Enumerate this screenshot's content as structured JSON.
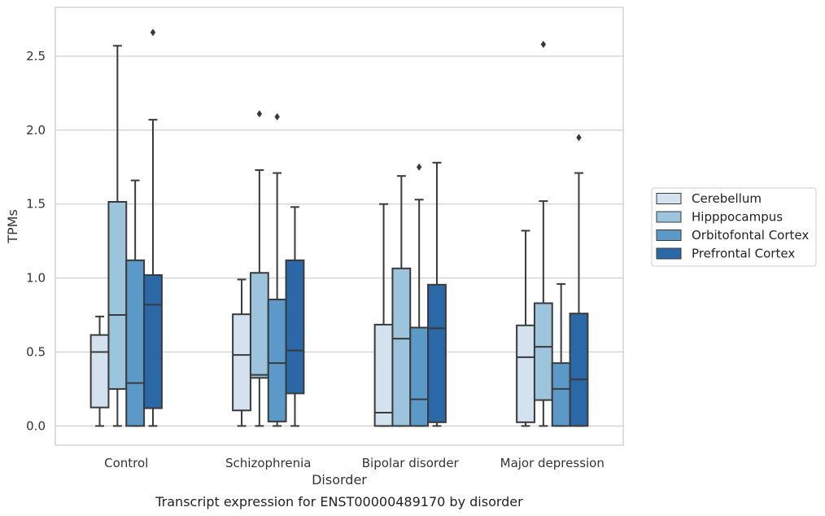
{
  "chart_data": {
    "type": "boxplot",
    "title": "",
    "caption": "Transcript expression for ENST00000489170 by disorder",
    "xlabel": "Disorder",
    "ylabel": "TPMs",
    "ylim": [
      -0.13,
      2.83
    ],
    "yticks": [
      0.0,
      0.5,
      1.0,
      1.5,
      2.0,
      2.5
    ],
    "ytick_labels": [
      "0.0",
      "0.5",
      "1.0",
      "1.5",
      "2.0",
      "2.5"
    ],
    "grid": "horizontal",
    "legend_position": "right",
    "categories": [
      "Control",
      "Schizophrenia",
      "Bipolar disorder",
      "Major depression"
    ],
    "series": [
      {
        "name": "Cerebellum",
        "color": "#d4e2f0",
        "boxes": [
          {
            "whislo": 0.0,
            "q1": 0.125,
            "med": 0.5,
            "q3": 0.615,
            "whishi": 0.74,
            "fliers": []
          },
          {
            "whislo": 0.0,
            "q1": 0.105,
            "med": 0.48,
            "q3": 0.755,
            "whishi": 0.99,
            "fliers": []
          },
          {
            "whislo": 0.0,
            "q1": 0.0,
            "med": 0.09,
            "q3": 0.685,
            "whishi": 1.5,
            "fliers": []
          },
          {
            "whislo": 0.0,
            "q1": 0.025,
            "med": 0.465,
            "q3": 0.68,
            "whishi": 1.32,
            "fliers": []
          }
        ]
      },
      {
        "name": "Hipppocampus",
        "color": "#9cc4dc",
        "boxes": [
          {
            "whislo": 0.0,
            "q1": 0.25,
            "med": 0.75,
            "q3": 1.515,
            "whishi": 2.57,
            "fliers": []
          },
          {
            "whislo": 0.0,
            "q1": 0.325,
            "med": 0.345,
            "q3": 1.035,
            "whishi": 1.73,
            "fliers": [
              2.11
            ]
          },
          {
            "whislo": 0.0,
            "q1": 0.0,
            "med": 0.59,
            "q3": 1.065,
            "whishi": 1.69,
            "fliers": []
          },
          {
            "whislo": 0.0,
            "q1": 0.175,
            "med": 0.535,
            "q3": 0.83,
            "whishi": 1.52,
            "fliers": [
              2.58
            ]
          }
        ]
      },
      {
        "name": "Orbitofontal Cortex",
        "color": "#5b9ac8",
        "boxes": [
          {
            "whislo": 0.0,
            "q1": 0.0,
            "med": 0.29,
            "q3": 1.12,
            "whishi": 1.66,
            "fliers": []
          },
          {
            "whislo": 0.0,
            "q1": 0.03,
            "med": 0.425,
            "q3": 0.855,
            "whishi": 1.71,
            "fliers": [
              2.09
            ]
          },
          {
            "whislo": 0.0,
            "q1": 0.0,
            "med": 0.18,
            "q3": 0.665,
            "whishi": 1.53,
            "fliers": [
              1.75
            ]
          },
          {
            "whislo": 0.0,
            "q1": 0.0,
            "med": 0.25,
            "q3": 0.425,
            "whishi": 0.96,
            "fliers": []
          }
        ]
      },
      {
        "name": "Prefrontal Cortex",
        "color": "#2a68a7",
        "boxes": [
          {
            "whislo": 0.0,
            "q1": 0.12,
            "med": 0.82,
            "q3": 1.02,
            "whishi": 2.07,
            "fliers": [
              2.66
            ]
          },
          {
            "whislo": 0.0,
            "q1": 0.22,
            "med": 0.51,
            "q3": 1.12,
            "whishi": 1.48,
            "fliers": []
          },
          {
            "whislo": 0.0,
            "q1": 0.025,
            "med": 0.66,
            "q3": 0.955,
            "whishi": 1.78,
            "fliers": []
          },
          {
            "whislo": 0.0,
            "q1": 0.0,
            "med": 0.315,
            "q3": 0.76,
            "whishi": 1.71,
            "fliers": [
              1.95
            ]
          }
        ]
      }
    ]
  }
}
